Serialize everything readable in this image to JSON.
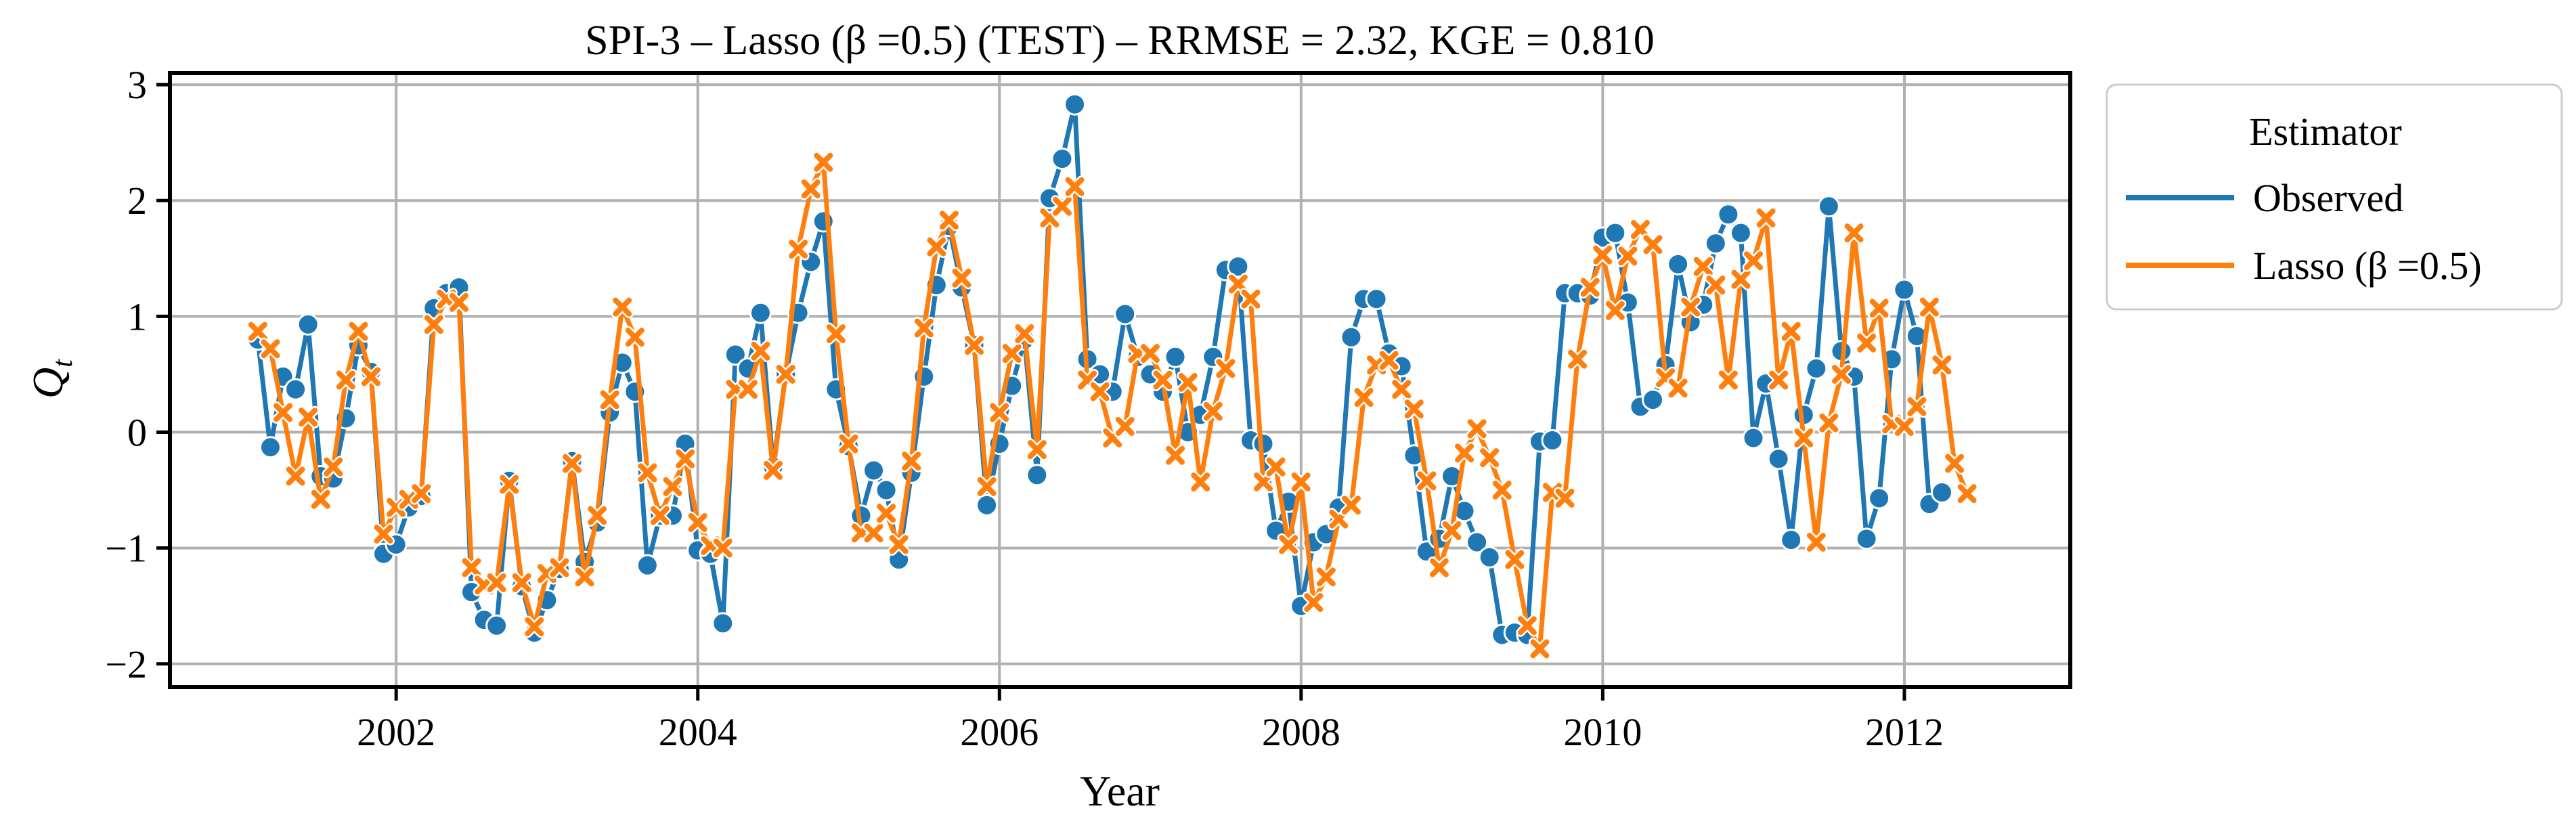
{
  "chart_data": {
    "type": "line",
    "title": "SPI-3 – Lasso (β =0.5) (TEST) – RRMSE = 2.32, KGE = 0.810",
    "xlabel": "Year",
    "ylabel_main": "Q",
    "ylabel_sub": "t",
    "xlim": [
      2000.5,
      2013.1
    ],
    "ylim": [
      -2.2,
      3.1
    ],
    "xticks": [
      2002,
      2004,
      2006,
      2008,
      2010,
      2012
    ],
    "xtick_labels": [
      "2002",
      "2004",
      "2006",
      "2008",
      "2010",
      "2012"
    ],
    "yticks": [
      -2,
      -1,
      0,
      1,
      2,
      3
    ],
    "ytick_labels": [
      "−2",
      "−1",
      "0",
      "1",
      "2",
      "3"
    ],
    "grid": true,
    "legend": {
      "title": "Estimator",
      "placement": "outside-top-right",
      "entries": [
        "Observed",
        "Lasso (β =0.5)"
      ]
    },
    "series": [
      {
        "name": "Observed",
        "color": "#1f77b4",
        "marker": "circle",
        "x_start": 2001.083,
        "x_step": 0.08333,
        "values": [
          0.8,
          -0.13,
          0.48,
          0.37,
          0.93,
          -0.38,
          -0.4,
          0.12,
          0.75,
          0.52,
          -1.05,
          -0.97,
          -0.65,
          -0.55,
          1.07,
          1.2,
          1.25,
          -1.38,
          -1.62,
          -1.67,
          -0.42,
          -1.33,
          -1.73,
          -1.45,
          -1.18,
          -0.25,
          -1.12,
          -0.78,
          0.17,
          0.6,
          0.35,
          -1.15,
          -0.72,
          -0.72,
          -0.1,
          -1.02,
          -1.05,
          -1.65,
          0.67,
          0.55,
          1.03,
          -0.3,
          0.5,
          1.03,
          1.47,
          1.82,
          0.37,
          -0.12,
          -0.72,
          -0.33,
          -0.5,
          -1.1,
          -0.35,
          0.48,
          1.27,
          1.78,
          1.25,
          0.75,
          -0.63,
          -0.1,
          0.4,
          0.8,
          -0.37,
          2.02,
          2.36,
          2.83,
          0.63,
          0.5,
          0.35,
          1.02,
          0.65,
          0.5,
          0.35,
          0.65,
          0.0,
          0.15,
          0.65,
          1.4,
          1.43,
          -0.07,
          -0.1,
          -0.85,
          -0.6,
          -1.5,
          -0.95,
          -0.88,
          -0.65,
          0.82,
          1.15,
          1.15,
          0.68,
          0.57,
          -0.2,
          -1.03,
          -0.92,
          -0.38,
          -0.68,
          -0.95,
          -1.08,
          -1.75,
          -1.73,
          -1.75,
          -0.08,
          -0.07,
          1.2,
          1.2,
          1.18,
          1.68,
          1.72,
          1.12,
          0.22,
          0.28,
          0.58,
          1.45,
          0.95,
          1.1,
          1.63,
          1.88,
          1.72,
          -0.05,
          0.42,
          -0.23,
          -0.93,
          0.15,
          0.55,
          1.95,
          0.7,
          0.48,
          -0.92,
          -0.57,
          0.63,
          1.23,
          0.83,
          -0.62,
          -0.52
        ]
      },
      {
        "name": "Lasso (β =0.5)",
        "color": "#ff7f0e",
        "marker": "x",
        "x_start": 2001.083,
        "x_step": 0.08333,
        "values": [
          0.87,
          0.72,
          0.17,
          -0.38,
          0.13,
          -0.58,
          -0.3,
          0.45,
          0.87,
          0.48,
          -0.88,
          -0.65,
          -0.58,
          -0.53,
          0.93,
          1.15,
          1.12,
          -1.17,
          -1.32,
          -1.3,
          -0.45,
          -1.3,
          -1.68,
          -1.22,
          -1.17,
          -0.27,
          -1.25,
          -0.72,
          0.28,
          1.08,
          0.82,
          -0.35,
          -0.72,
          -0.47,
          -0.23,
          -0.78,
          -0.98,
          -1.0,
          0.37,
          0.37,
          0.7,
          -0.33,
          0.5,
          1.58,
          2.1,
          2.33,
          0.85,
          -0.1,
          -0.87,
          -0.87,
          -0.7,
          -0.97,
          -0.25,
          0.9,
          1.6,
          1.83,
          1.33,
          0.75,
          -0.47,
          0.17,
          0.68,
          0.85,
          -0.15,
          1.85,
          1.95,
          2.12,
          0.45,
          0.35,
          -0.05,
          0.05,
          0.68,
          0.68,
          0.45,
          -0.2,
          0.43,
          -0.43,
          0.18,
          0.55,
          1.28,
          1.15,
          -0.43,
          -0.3,
          -0.97,
          -0.43,
          -1.47,
          -1.25,
          -0.75,
          -0.63,
          0.3,
          0.58,
          0.62,
          0.37,
          0.2,
          -0.42,
          -1.17,
          -0.85,
          -0.18,
          0.03,
          -0.22,
          -0.5,
          -1.1,
          -1.67,
          -1.87,
          -0.52,
          -0.57,
          0.63,
          1.25,
          1.53,
          1.05,
          1.52,
          1.75,
          1.62,
          0.47,
          0.38,
          1.08,
          1.43,
          1.27,
          0.45,
          1.32,
          1.48,
          1.85,
          0.45,
          0.87,
          -0.05,
          -0.95,
          0.08,
          0.5,
          1.72,
          0.77,
          1.07,
          0.07,
          0.05,
          0.22,
          1.08,
          0.58,
          -0.27,
          -0.53
        ]
      }
    ]
  }
}
